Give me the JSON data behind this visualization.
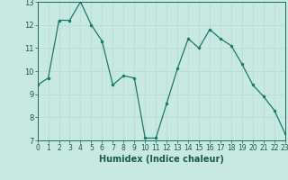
{
  "x": [
    0,
    1,
    2,
    3,
    4,
    5,
    6,
    7,
    8,
    9,
    10,
    11,
    12,
    13,
    14,
    15,
    16,
    17,
    18,
    19,
    20,
    21,
    22,
    23
  ],
  "y": [
    9.4,
    9.7,
    12.2,
    12.2,
    13.0,
    12.0,
    11.3,
    9.4,
    9.8,
    9.7,
    7.1,
    7.1,
    8.6,
    10.1,
    11.4,
    11.0,
    11.8,
    11.4,
    11.1,
    10.3,
    9.4,
    8.9,
    8.3,
    7.3
  ],
  "xlabel": "Humidex (Indice chaleur)",
  "ylim": [
    7,
    13
  ],
  "xlim": [
    0,
    23
  ],
  "yticks": [
    7,
    8,
    9,
    10,
    11,
    12,
    13
  ],
  "xticks": [
    0,
    1,
    2,
    3,
    4,
    5,
    6,
    7,
    8,
    9,
    10,
    11,
    12,
    13,
    14,
    15,
    16,
    17,
    18,
    19,
    20,
    21,
    22,
    23
  ],
  "line_color": "#1a7a6e",
  "marker_color": "#1a7a6e",
  "bg_color": "#c8e8e2",
  "grid_color": "#b8d8d2",
  "axis_color": "#1a6a60",
  "label_color": "#1a5a52",
  "tick_fontsize": 5.5,
  "xlabel_fontsize": 7.0
}
